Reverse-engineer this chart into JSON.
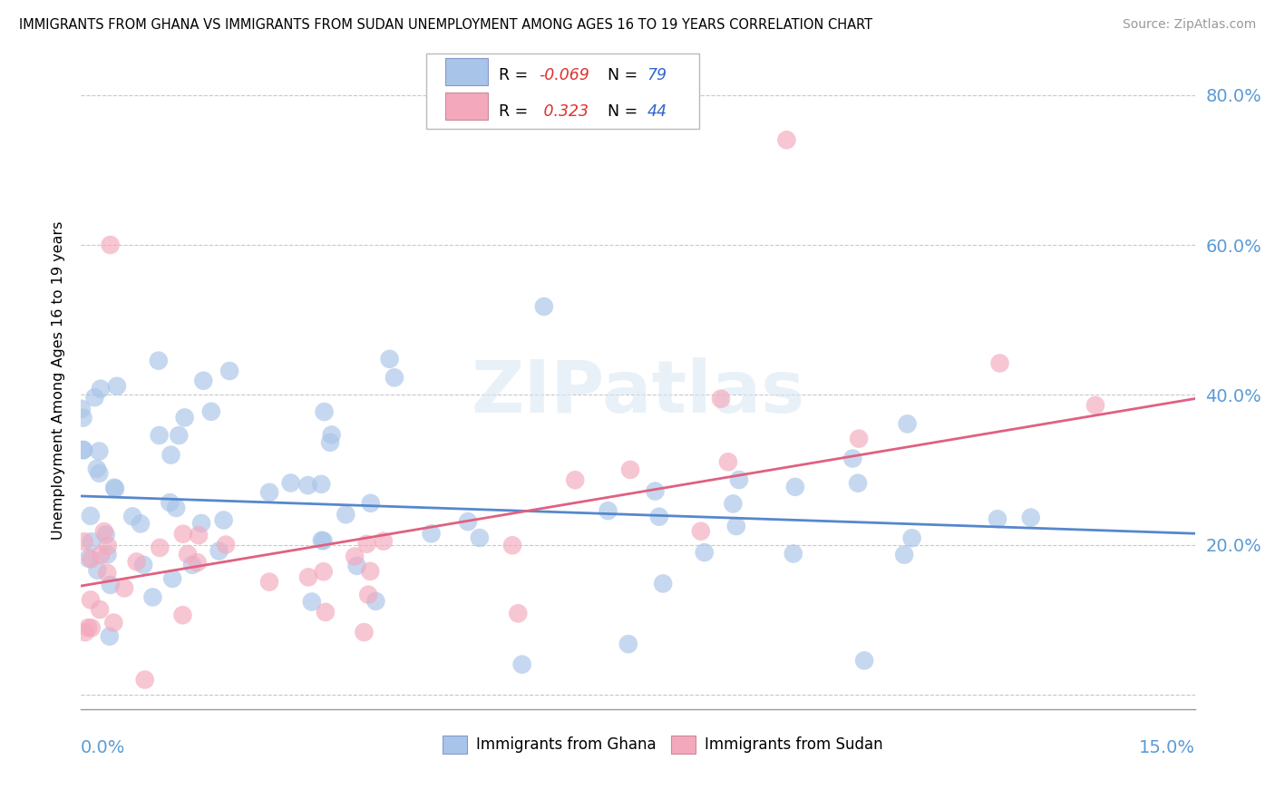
{
  "title": "IMMIGRANTS FROM GHANA VS IMMIGRANTS FROM SUDAN UNEMPLOYMENT AMONG AGES 16 TO 19 YEARS CORRELATION CHART",
  "source": "Source: ZipAtlas.com",
  "ylabel": "Unemployment Among Ages 16 to 19 years",
  "watermark": "ZIPatlas",
  "ghana_R": -0.069,
  "ghana_N": 79,
  "sudan_R": 0.323,
  "sudan_N": 44,
  "ghana_color": "#a8c4e8",
  "sudan_color": "#f4a8bc",
  "ghana_line_color": "#5588cc",
  "sudan_line_color": "#e06080",
  "xmin": 0.0,
  "xmax": 0.15,
  "ymin": -0.02,
  "ymax": 0.86,
  "ghana_trend_x0": 0.0,
  "ghana_trend_y0": 0.265,
  "ghana_trend_x1": 0.15,
  "ghana_trend_y1": 0.215,
  "sudan_trend_x0": 0.0,
  "sudan_trend_y0": 0.145,
  "sudan_trend_x1": 0.15,
  "sudan_trend_y1": 0.395,
  "yticks": [
    0.0,
    0.2,
    0.4,
    0.6,
    0.8
  ],
  "ytick_labels": [
    "",
    "20.0%",
    "40.0%",
    "60.0%",
    "80.0%"
  ]
}
